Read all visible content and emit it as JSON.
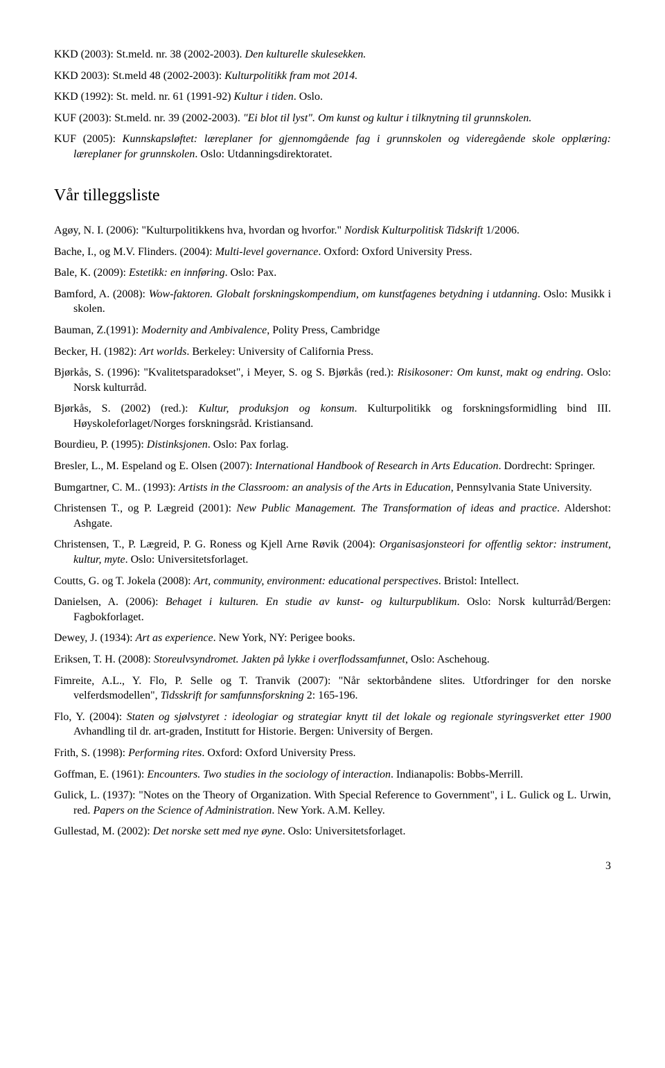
{
  "refs_top": [
    {
      "pre": "KKD (2003): St.meld. nr. 38 (2002-2003). ",
      "it": "Den kulturelle skulesekken.",
      "post": ""
    },
    {
      "pre": "KKD 2003): St.meld 48 (2002-2003): ",
      "it": "Kulturpolitikk fram mot 2014.",
      "post": ""
    },
    {
      "pre": "KKD (1992): St. meld. nr. 61 (1991-92) ",
      "it": "Kultur i tiden",
      "post": ". Oslo."
    },
    {
      "pre": "KUF (2003): St.meld. nr. 39 (2002-2003). ",
      "it": "\"Ei blot til lyst\". Om kunst og kultur i tilknytning til grunnskolen.",
      "post": ""
    },
    {
      "pre": "KUF (2005): ",
      "it": "Kunnskapsløftet: læreplaner for gjennomgående fag i grunnskolen og videregående skole opplæring: læreplaner for grunnskolen",
      "post": ". Oslo: Utdanningsdirektoratet."
    }
  ],
  "section_heading": "Vår tilleggsliste",
  "refs_main": [
    {
      "segments": [
        {
          "t": "Agøy, N. I. (2006): \"Kulturpolitikkens hva, hvordan og hvorfor.\" "
        },
        {
          "t": "Nordisk Kulturpolitisk Tidskrift",
          "i": true
        },
        {
          "t": " 1/2006."
        }
      ]
    },
    {
      "segments": [
        {
          "t": "Bache, I., og M.V. Flinders. (2004): "
        },
        {
          "t": "Multi-level governance",
          "i": true
        },
        {
          "t": ". Oxford: Oxford University Press."
        }
      ]
    },
    {
      "segments": [
        {
          "t": "Bale, K. (2009): "
        },
        {
          "t": "Estetikk: en innføring",
          "i": true
        },
        {
          "t": ". Oslo: Pax."
        }
      ]
    },
    {
      "segments": [
        {
          "t": "Bamford, A. (2008): "
        },
        {
          "t": "Wow-faktoren. Globalt forskningskompendium, om kunstfagenes betydning i utdanning",
          "i": true
        },
        {
          "t": ". Oslo: Musikk i skolen."
        }
      ]
    },
    {
      "segments": [
        {
          "t": "Bauman, Z.(1991): "
        },
        {
          "t": "Modernity and Ambivalence",
          "i": true
        },
        {
          "t": ", Polity Press, Cambridge"
        }
      ]
    },
    {
      "segments": [
        {
          "t": "Becker, H. (1982): "
        },
        {
          "t": "Art worlds",
          "i": true
        },
        {
          "t": ". Berkeley: University of California Press."
        }
      ]
    },
    {
      "segments": [
        {
          "t": "Bjørkås, S. (1996): \"Kvalitetsparadokset\", i Meyer, S. og S. Bjørkås (red.): "
        },
        {
          "t": "Risikosoner: Om kunst, makt og endring",
          "i": true
        },
        {
          "t": ". Oslo: Norsk kulturråd."
        }
      ]
    },
    {
      "segments": [
        {
          "t": "Bjørkås, S. (2002) (red.): "
        },
        {
          "t": "Kultur, produksjon og konsum",
          "i": true
        },
        {
          "t": ". Kulturpolitikk og forskningsformidling bind III. Høyskoleforlaget/Norges forskningsråd. Kristiansand."
        }
      ]
    },
    {
      "segments": [
        {
          "t": "Bourdieu, P. (1995): "
        },
        {
          "t": "Distinksjonen",
          "i": true
        },
        {
          "t": ". Oslo: Pax forlag."
        }
      ]
    },
    {
      "segments": [
        {
          "t": "Bresler, L., M. Espeland og E. Olsen (2007): "
        },
        {
          "t": "International Handbook of Research in Arts Education",
          "i": true
        },
        {
          "t": ". Dordrecht: Springer."
        }
      ]
    },
    {
      "segments": [
        {
          "t": "Bumgartner, C. M.. (1993): "
        },
        {
          "t": "Artists in the Classroom: an analysis of the Arts in Education",
          "i": true
        },
        {
          "t": ", Pennsylvania State University."
        }
      ]
    },
    {
      "segments": [
        {
          "t": "Christensen T., og P. Lægreid (2001): "
        },
        {
          "t": "New Public Management. The Transformation of ideas and practice",
          "i": true
        },
        {
          "t": ". Aldershot: Ashgate."
        }
      ]
    },
    {
      "segments": [
        {
          "t": "Christensen, T., P. Lægreid, P. G. Roness og Kjell Arne Røvik (2004): "
        },
        {
          "t": "Organisasjonsteori for offentlig sektor: instrument, kultur, myte",
          "i": true
        },
        {
          "t": ". Oslo: Universitetsforlaget."
        }
      ]
    },
    {
      "segments": [
        {
          "t": "Coutts, G. og T. Jokela (2008): "
        },
        {
          "t": "Art, community, environment: educational perspectives",
          "i": true
        },
        {
          "t": ". Bristol: Intellect."
        }
      ]
    },
    {
      "segments": [
        {
          "t": "Danielsen, A. (2006): "
        },
        {
          "t": "Behaget i kulturen. En studie av kunst- og kulturpublikum",
          "i": true
        },
        {
          "t": ". Oslo: Norsk kulturråd/Bergen: Fagbokforlaget."
        }
      ]
    },
    {
      "segments": [
        {
          "t": "Dewey, J. (1934): "
        },
        {
          "t": "Art as experience",
          "i": true
        },
        {
          "t": ". New York, NY: Perigee books."
        }
      ]
    },
    {
      "segments": [
        {
          "t": "Eriksen, T. H. (2008): "
        },
        {
          "t": "Storeulvsyndromet. Jakten på lykke i overflodssamfunnet",
          "i": true
        },
        {
          "t": ", Oslo: Aschehoug."
        }
      ]
    },
    {
      "segments": [
        {
          "t": "Fimreite, A.L., Y. Flo, P. Selle og T. Tranvik (2007): \"Når sektorbåndene slites. Utfordringer for den norske velferdsmodellen\", "
        },
        {
          "t": "Tidsskrift for samfunnsforskning",
          "i": true
        },
        {
          "t": " 2: 165-196."
        }
      ]
    },
    {
      "segments": [
        {
          "t": "Flo, Y. (2004): "
        },
        {
          "t": "Staten og sjølvstyret : ideologiar og strategiar knytt til det lokale og regionale styringsverket etter 1900",
          "i": true
        },
        {
          "t": "  Avhandling til dr. art-graden, Institutt for Historie. Bergen: University of Bergen."
        }
      ]
    },
    {
      "segments": [
        {
          "t": "Frith, S. (1998): "
        },
        {
          "t": "Performing rites",
          "i": true
        },
        {
          "t": ".  Oxford: Oxford University Press."
        }
      ]
    },
    {
      "segments": [
        {
          "t": "Goffman, E. (1961): "
        },
        {
          "t": "Encounters. Two studies in the sociology of interaction",
          "i": true
        },
        {
          "t": ". Indianapolis: Bobbs-Merrill."
        }
      ]
    },
    {
      "segments": [
        {
          "t": "Gulick, L. (1937): \"Notes on the Theory of Organization.  With Special Reference to Government\", i L. Gulick og L. Urwin, red. "
        },
        {
          "t": "Papers on the Science of Administration",
          "i": true
        },
        {
          "t": ". New York. A.M. Kelley."
        }
      ]
    },
    {
      "segments": [
        {
          "t": "Gullestad, M. (2002): "
        },
        {
          "t": "Det norske sett med nye øyne",
          "i": true
        },
        {
          "t": ". Oslo: Universitetsforlaget."
        }
      ]
    }
  ],
  "page_number": "3"
}
